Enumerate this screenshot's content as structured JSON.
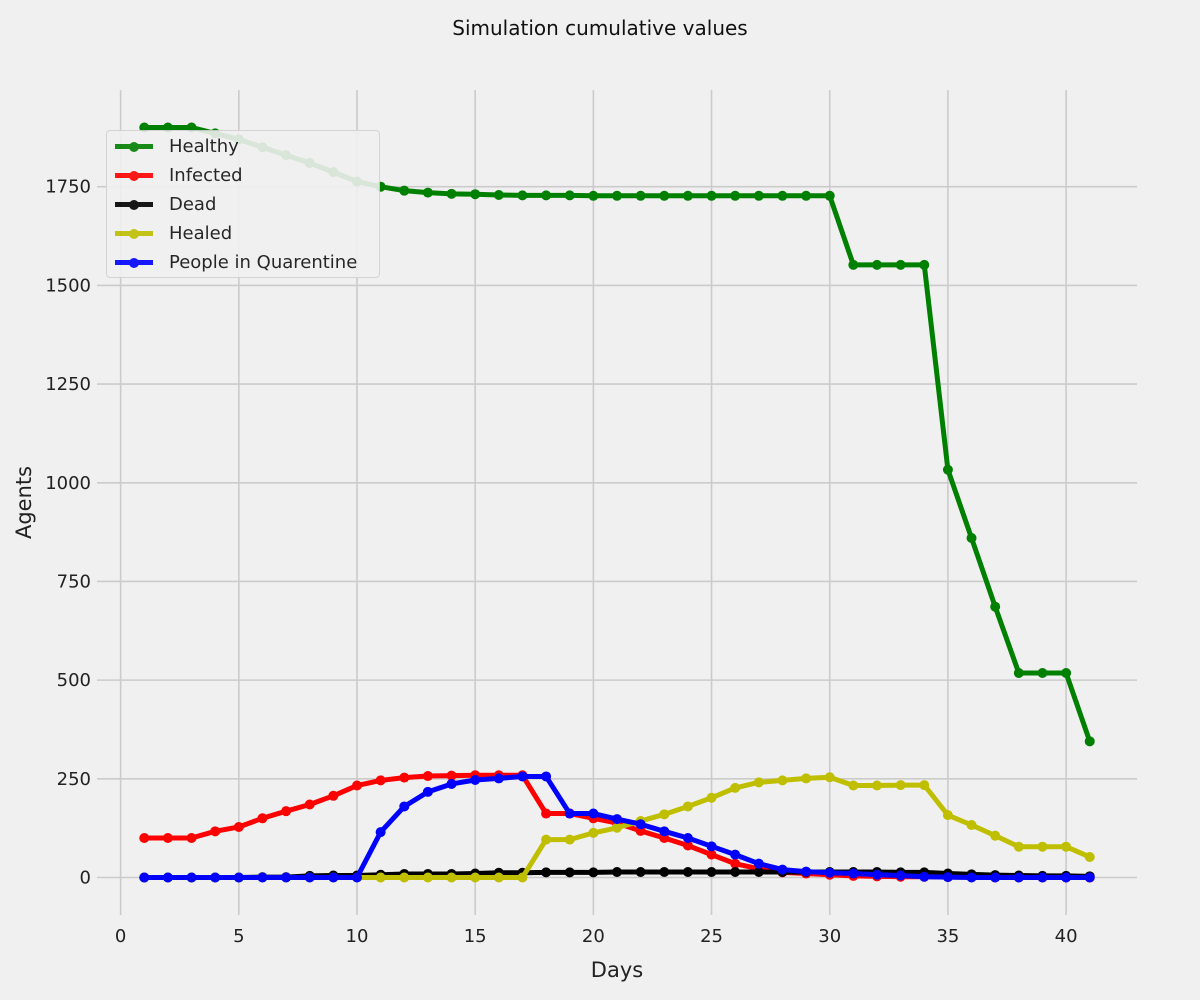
{
  "chart_data": {
    "type": "line",
    "title": "Simulation cumulative values",
    "xlabel": "Days",
    "ylabel": "Agents",
    "xlim": [
      -1,
      43
    ],
    "ylim": [
      -95,
      1995
    ],
    "xticks": [
      0,
      5,
      10,
      15,
      20,
      25,
      30,
      35,
      40
    ],
    "yticks": [
      0,
      250,
      500,
      750,
      1000,
      1250,
      1500,
      1750
    ],
    "grid": true,
    "legend_position": "top-left",
    "x": [
      1,
      2,
      3,
      4,
      5,
      6,
      7,
      8,
      9,
      10,
      11,
      12,
      13,
      14,
      15,
      16,
      17,
      18,
      19,
      20,
      21,
      22,
      23,
      24,
      25,
      26,
      27,
      28,
      29,
      30,
      31,
      32,
      33,
      34,
      35,
      36,
      37,
      38,
      39,
      40,
      41
    ],
    "series": [
      {
        "name": "Healthy",
        "color": "#008000",
        "values": [
          1900,
          1900,
          1900,
          1885,
          1870,
          1850,
          1830,
          1810,
          1787,
          1763,
          1750,
          1740,
          1735,
          1732,
          1731,
          1729,
          1728,
          1728,
          1728,
          1727,
          1727,
          1727,
          1727,
          1727,
          1727,
          1727,
          1727,
          1727,
          1727,
          1727,
          1552,
          1552,
          1552,
          1552,
          1033,
          860,
          686,
          518,
          518,
          518,
          345
        ]
      },
      {
        "name": "Infected",
        "color": "#ff0000",
        "values": [
          100,
          100,
          100,
          117,
          128,
          150,
          168,
          185,
          207,
          233,
          246,
          253,
          257,
          258,
          259,
          259,
          259,
          162,
          162,
          150,
          138,
          118,
          100,
          81,
          58,
          35,
          22,
          13,
          10,
          7,
          4,
          3,
          2,
          2,
          1,
          1,
          0,
          0,
          0,
          0,
          0
        ]
      },
      {
        "name": "Dead",
        "color": "#000000",
        "values": [
          0,
          0,
          0,
          0,
          0,
          1,
          1,
          4,
          5,
          5,
          7,
          9,
          9,
          9,
          10,
          12,
          12,
          13,
          13,
          13,
          14,
          14,
          14,
          14,
          14,
          14,
          14,
          14,
          14,
          14,
          14,
          14,
          13,
          13,
          10,
          8,
          6,
          5,
          4,
          4,
          3
        ]
      },
      {
        "name": "Healed",
        "color": "#bfbf00",
        "values": [
          0,
          0,
          0,
          0,
          0,
          0,
          0,
          0,
          0,
          0,
          0,
          0,
          0,
          0,
          0,
          0,
          0,
          96,
          96,
          113,
          126,
          143,
          160,
          180,
          202,
          227,
          241,
          246,
          251,
          254,
          233,
          233,
          234,
          234,
          158,
          133,
          106,
          78,
          78,
          78,
          52
        ]
      },
      {
        "name": "People in Quarentine",
        "color": "#0000ff",
        "values": [
          0,
          0,
          0,
          0,
          0,
          0,
          0,
          0,
          0,
          0,
          115,
          180,
          217,
          237,
          247,
          251,
          256,
          256,
          162,
          162,
          148,
          135,
          117,
          100,
          79,
          58,
          35,
          20,
          15,
          12,
          10,
          7,
          5,
          2,
          1,
          0,
          0,
          0,
          0,
          0,
          0
        ]
      }
    ]
  }
}
